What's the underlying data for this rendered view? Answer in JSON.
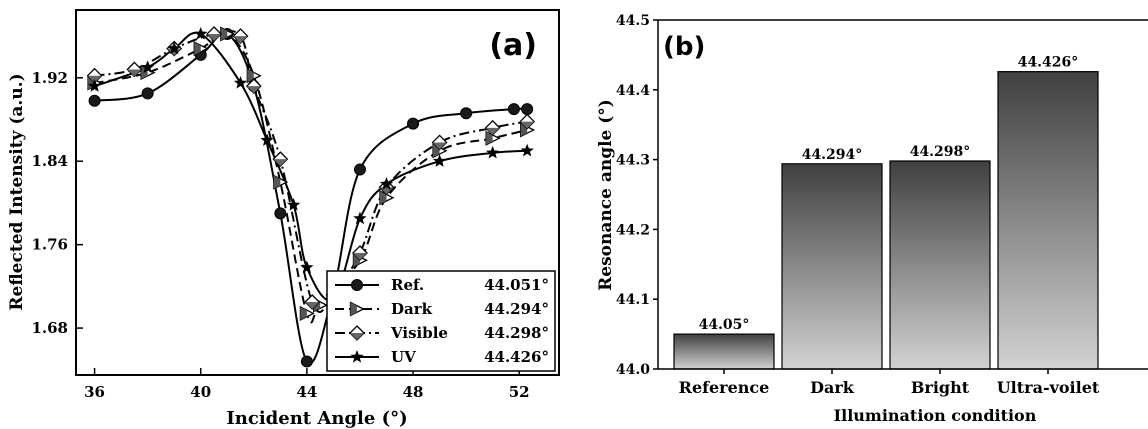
{
  "chart_data": [
    {
      "type": "line",
      "panel_label": "(a)",
      "title": "",
      "xlabel": "Incident Angle (°)",
      "ylabel": "Reflected Intensity (a.u.)",
      "xlim": [
        35.3,
        53.5
      ],
      "ylim": [
        1.635,
        1.985
      ],
      "xticks": [
        36,
        40,
        44,
        48,
        52
      ],
      "yticks": [
        1.68,
        1.76,
        1.84,
        1.92
      ],
      "xtick_labels": [
        "36",
        "40",
        "44",
        "48",
        "52"
      ],
      "ytick_labels": [
        "1.68",
        "1.76",
        "1.84",
        "1.92"
      ],
      "grid": false,
      "legend_position": "bottom-right",
      "series": [
        {
          "name": "Ref.",
          "legend_value": "44.051°",
          "marker": "circle",
          "dash": "solid",
          "x": [
            36,
            38,
            40,
            41,
            42,
            43,
            44,
            45,
            46,
            48,
            50,
            51.8,
            52.3
          ],
          "y": [
            1.898,
            1.905,
            1.942,
            1.962,
            1.912,
            1.79,
            1.648,
            1.715,
            1.832,
            1.876,
            1.886,
            1.89,
            1.89
          ]
        },
        {
          "name": "Dark",
          "legend_value": "44.294°",
          "marker": "triangle-right",
          "dash": "dashed",
          "x": [
            36,
            38,
            40,
            41,
            42,
            43,
            44,
            44.5,
            46,
            47,
            49,
            51,
            52.3
          ],
          "y": [
            1.915,
            1.925,
            1.948,
            1.962,
            1.922,
            1.82,
            1.694,
            1.702,
            1.745,
            1.805,
            1.85,
            1.862,
            1.87
          ]
        },
        {
          "name": "Visible",
          "legend_value": "44.298°",
          "marker": "diamond",
          "dash": "dashdot",
          "x": [
            36,
            37.5,
            39,
            40.5,
            41.5,
            42,
            43,
            44.2,
            45,
            46,
            47,
            49,
            51,
            52.3
          ],
          "y": [
            1.922,
            1.928,
            1.948,
            1.962,
            1.96,
            1.912,
            1.842,
            1.705,
            1.712,
            1.752,
            1.815,
            1.858,
            1.872,
            1.878
          ]
        },
        {
          "name": "UV",
          "legend_value": "44.426°",
          "marker": "star",
          "dash": "solid",
          "x": [
            36,
            38,
            39,
            40,
            41.5,
            42.5,
            43.5,
            44,
            45,
            46,
            47,
            49,
            51,
            52.3
          ],
          "y": [
            1.912,
            1.93,
            1.948,
            1.962,
            1.915,
            1.86,
            1.798,
            1.738,
            1.708,
            1.785,
            1.818,
            1.84,
            1.848,
            1.85
          ]
        }
      ]
    },
    {
      "type": "bar",
      "panel_label": "(b)",
      "title": "",
      "xlabel": "Illumination condition",
      "ylabel": "Resonance angle (°)",
      "categories": [
        "Reference",
        "Dark",
        "Bright",
        "Ultra-voilet"
      ],
      "values": [
        44.05,
        44.294,
        44.298,
        44.426
      ],
      "value_labels": [
        "44.05°",
        "44.294°",
        "44.298°",
        "44.426°"
      ],
      "ylim": [
        44.0,
        44.5
      ],
      "yticks": [
        44.0,
        44.1,
        44.2,
        44.3,
        44.4,
        44.5
      ],
      "ytick_labels": [
        "44.0",
        "44.1",
        "44.2",
        "44.3",
        "44.4",
        "44.5"
      ],
      "grid": false,
      "bar_gradient": [
        "#404040",
        "#d2d2d2"
      ]
    }
  ]
}
